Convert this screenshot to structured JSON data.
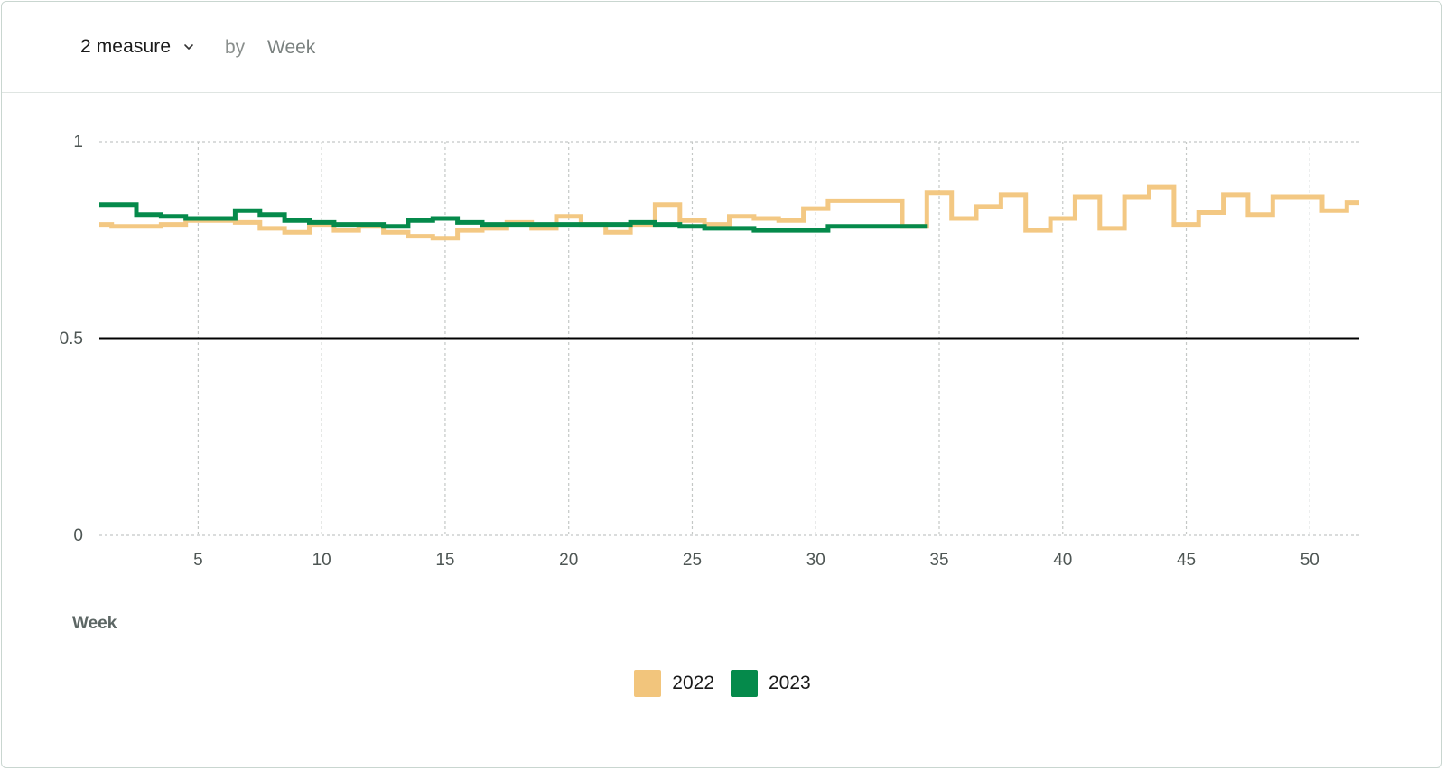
{
  "toolbar": {
    "measure_label": "2 measure",
    "by_label": "by",
    "dimension_label": "Week"
  },
  "chart_data": {
    "type": "line",
    "step": true,
    "xlabel": "Week",
    "ylabel": "",
    "xlim": [
      1,
      52
    ],
    "ylim": [
      0,
      1
    ],
    "x_ticks": [
      5,
      10,
      15,
      20,
      25,
      30,
      35,
      40,
      45,
      50
    ],
    "y_ticks": [
      0,
      0.5,
      1
    ],
    "grid": true,
    "legend_position": "bottom",
    "reference_line": {
      "y": 0.5,
      "color": "#000000"
    },
    "series": [
      {
        "name": "2022",
        "color": "#f2c57c",
        "x": [
          1,
          2,
          3,
          4,
          5,
          6,
          7,
          8,
          9,
          10,
          11,
          12,
          13,
          14,
          15,
          16,
          17,
          18,
          19,
          20,
          21,
          22,
          23,
          24,
          25,
          26,
          27,
          28,
          29,
          30,
          31,
          32,
          33,
          34,
          35,
          36,
          37,
          38,
          39,
          40,
          41,
          42,
          43,
          44,
          45,
          46,
          47,
          48,
          49,
          50,
          51,
          52
        ],
        "values": [
          0.79,
          0.785,
          0.785,
          0.79,
          0.8,
          0.8,
          0.795,
          0.78,
          0.77,
          0.79,
          0.775,
          0.785,
          0.77,
          0.76,
          0.755,
          0.775,
          0.78,
          0.795,
          0.78,
          0.81,
          0.79,
          0.77,
          0.79,
          0.84,
          0.8,
          0.79,
          0.81,
          0.805,
          0.8,
          0.83,
          0.85,
          0.85,
          0.85,
          0.785,
          0.87,
          0.805,
          0.835,
          0.865,
          0.775,
          0.805,
          0.86,
          0.78,
          0.86,
          0.885,
          0.79,
          0.82,
          0.865,
          0.815,
          0.86,
          0.86,
          0.825,
          0.845
        ]
      },
      {
        "name": "2023",
        "color": "#058a4b",
        "x": [
          1,
          2,
          3,
          4,
          5,
          6,
          7,
          8,
          9,
          10,
          11,
          12,
          13,
          14,
          15,
          16,
          17,
          18,
          19,
          20,
          21,
          22,
          23,
          24,
          25,
          26,
          27,
          28,
          29,
          30,
          31,
          32,
          33,
          34
        ],
        "values": [
          0.84,
          0.84,
          0.815,
          0.81,
          0.805,
          0.805,
          0.825,
          0.815,
          0.8,
          0.795,
          0.79,
          0.79,
          0.785,
          0.8,
          0.805,
          0.795,
          0.79,
          0.79,
          0.79,
          0.79,
          0.79,
          0.79,
          0.795,
          0.79,
          0.785,
          0.78,
          0.78,
          0.775,
          0.775,
          0.775,
          0.785,
          0.785,
          0.785,
          0.785
        ]
      }
    ]
  }
}
